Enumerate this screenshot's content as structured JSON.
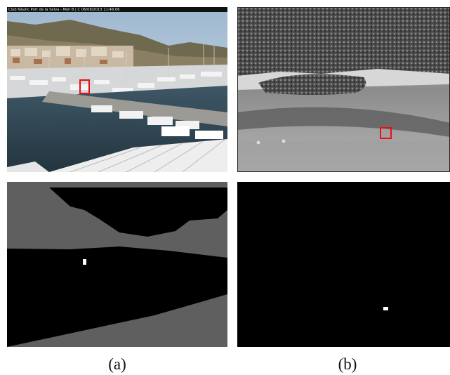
{
  "figure": {
    "caption_a": "(a)",
    "caption_b": "(b)",
    "webcam_overlay_text": "Club Nàutic Port de la Selva - Moll B | C 06/08/2013 11:46:06"
  },
  "colors": {
    "detection_box": "#e81010",
    "mask_gray": "#5f5f5f",
    "mask_black": "#000000",
    "mask_white": "#ffffff"
  }
}
